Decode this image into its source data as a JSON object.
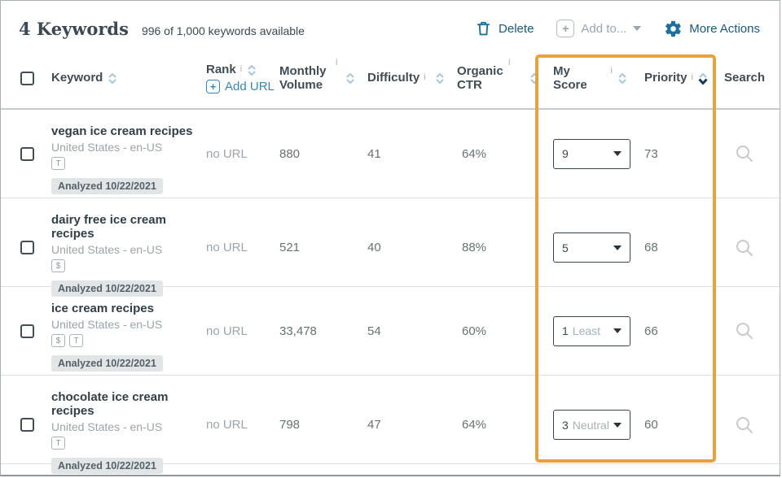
{
  "header": {
    "title": "4 Keywords",
    "subtitle": "996 of 1,000 keywords available"
  },
  "toolbar": {
    "delete_label": "Delete",
    "add_to_label": "Add to...",
    "more_actions_label": "More Actions"
  },
  "columns": {
    "keyword": "Keyword",
    "rank": "Rank",
    "add_url": "Add URL",
    "monthly_volume": "Monthly Volume",
    "difficulty": "Difficulty",
    "organic_ctr": "Organic CTR",
    "my_score": "My Score",
    "priority": "Priority",
    "search": "Search"
  },
  "icons": {
    "info": "i",
    "plus": "+"
  },
  "colors": {
    "highlight_orange": "#E9A13C",
    "icon_blue": "#1E6E9F",
    "text_blue": "#1B5878",
    "link_blue": "#3A87AB"
  },
  "rows": [
    {
      "keyword": "vegan ice cream recipes",
      "locale": "United States - en-US",
      "badges": [
        "T"
      ],
      "analyzed": "Analyzed 10/22/2021",
      "rank": "no URL",
      "volume": "880",
      "difficulty": "41",
      "ctr": "64%",
      "score": "9",
      "score_label": "",
      "priority": "73"
    },
    {
      "keyword": "dairy free ice cream recipes",
      "locale": "United States - en-US",
      "badges": [
        "$"
      ],
      "analyzed": "Analyzed 10/22/2021",
      "rank": "no URL",
      "volume": "521",
      "difficulty": "40",
      "ctr": "88%",
      "score": "5",
      "score_label": "",
      "priority": "68"
    },
    {
      "keyword": "ice cream recipes",
      "locale": "United States - en-US",
      "badges": [
        "$",
        "T"
      ],
      "analyzed": "Analyzed 10/22/2021",
      "rank": "no URL",
      "volume": "33,478",
      "difficulty": "54",
      "ctr": "60%",
      "score": "1",
      "score_label": "Least",
      "priority": "66"
    },
    {
      "keyword": "chocolate ice cream recipes",
      "locale": "United States - en-US",
      "badges": [
        "T"
      ],
      "analyzed": "Analyzed 10/22/2021",
      "rank": "no URL",
      "volume": "798",
      "difficulty": "47",
      "ctr": "64%",
      "score": "3",
      "score_label": "Neutral",
      "priority": "60"
    }
  ]
}
